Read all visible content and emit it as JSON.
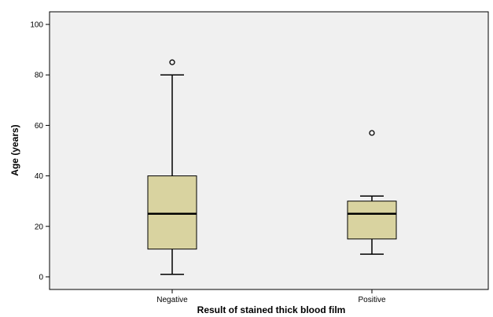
{
  "chart_data": {
    "type": "box",
    "title": "",
    "xlabel": "Result of stained thick blood film",
    "ylabel": "Age (years)",
    "ylim": [
      -5,
      105
    ],
    "yticks": [
      0,
      20,
      40,
      60,
      80,
      100
    ],
    "categories": [
      "Negative",
      "Positive"
    ],
    "boxes": [
      {
        "category": "Negative",
        "whisker_low": 1,
        "q1": 11,
        "median": 25,
        "q3": 40,
        "whisker_high": 80,
        "outliers": [
          85
        ]
      },
      {
        "category": "Positive",
        "whisker_low": 9,
        "q1": 15,
        "median": 25,
        "q3": 30,
        "whisker_high": 32,
        "outliers": [
          57
        ]
      }
    ],
    "grid": false,
    "colors": {
      "plot_background": "#f0f0f0",
      "box_fill": "#d9d3a0",
      "box_stroke": "#000000"
    }
  }
}
